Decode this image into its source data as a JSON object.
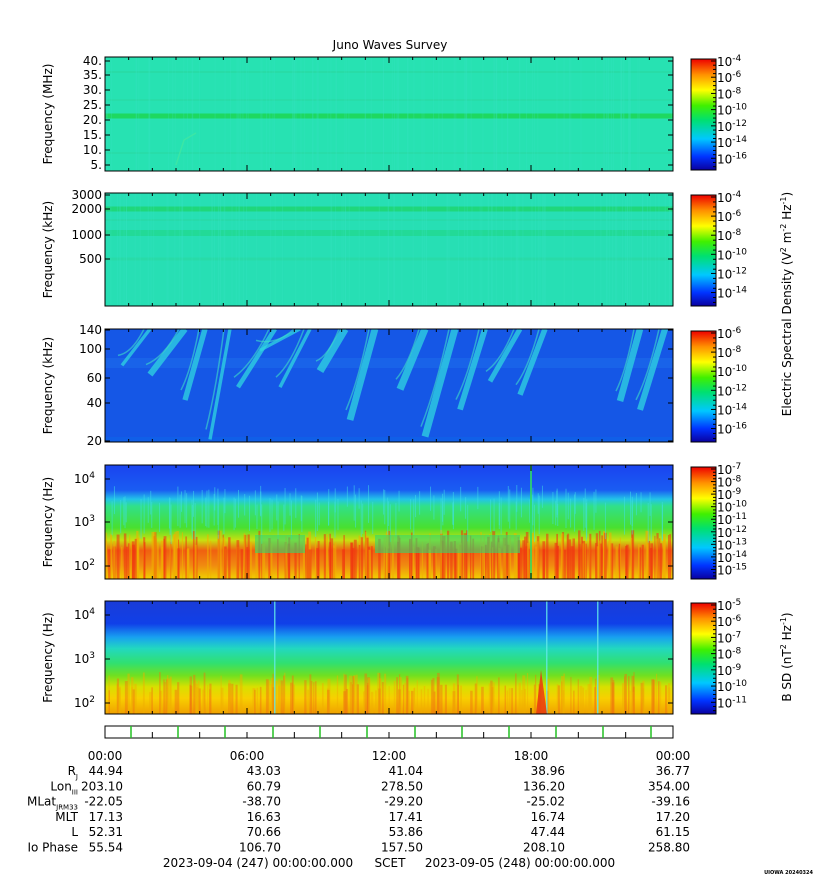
{
  "title": "Juno Waves Survey",
  "panels": [
    {
      "ylabel": "Frequency (MHz)",
      "yticks": [
        "40.",
        "35.",
        "30.",
        "25.",
        "20.",
        "15.",
        "10.",
        "5."
      ],
      "colorbar_exponents": [
        "-4",
        "-6",
        "-8",
        "-10",
        "-12",
        "-14",
        "-16"
      ],
      "base_color": "#27e2b2",
      "band_color": "#1ed860"
    },
    {
      "ylabel": "Frequency (kHz)",
      "yticks": [
        "3000",
        "2000",
        "1000",
        "500"
      ],
      "colorbar_exponents": [
        "-4",
        "-6",
        "-8",
        "-10",
        "-12",
        "-14"
      ],
      "base_color": "#27dfb4",
      "band_color": "#1fd674"
    },
    {
      "ylabel": "Frequency (kHz)",
      "yticks": [
        "140",
        "100",
        "60",
        "40",
        "20"
      ],
      "colorbar_exponents": [
        "-6",
        "-8",
        "-10",
        "-12",
        "-14",
        "-16"
      ],
      "base_color": "#1557e6",
      "band_color": "#2fd6e0"
    },
    {
      "ylabel": "Frequency (Hz)",
      "yticks_exponent": [
        "4",
        "3",
        "2"
      ],
      "colorbar_exponents": [
        "-7",
        "-8",
        "-9",
        "-10",
        "-11",
        "-12",
        "-13",
        "-14",
        "-15"
      ]
    },
    {
      "ylabel": "Frequency (Hz)",
      "yticks_exponent": [
        "4",
        "3",
        "2"
      ],
      "colorbar_exponents": [
        "-5",
        "-6",
        "-7",
        "-8",
        "-9",
        "-10",
        "-11"
      ]
    }
  ],
  "colorbar_labels": {
    "electric": "Electric Spectral Density (V",
    "electric_unit_sup1": "2",
    "electric_unit_mid": " m",
    "electric_unit_sup2": "-2",
    "electric_unit_mid2": " Hz",
    "electric_unit_sup3": "-1",
    "electric_unit_end": ")",
    "magnetic": "B SD (nT",
    "magnetic_sup1": "2",
    "magnetic_mid": " Hz",
    "magnetic_sup2": "-1",
    "magnetic_end": ")"
  },
  "time_axis": {
    "labels": [
      "00:00",
      "06:00",
      "12:00",
      "18:00",
      "00:00"
    ]
  },
  "ephemeris": [
    {
      "name": "R",
      "sub": "J",
      "values": [
        "44.94",
        "43.03",
        "41.04",
        "38.96",
        "36.77"
      ]
    },
    {
      "name": "Lon",
      "sub": "III",
      "values": [
        "203.10",
        "60.79",
        "278.50",
        "136.20",
        "354.00"
      ]
    },
    {
      "name": "MLat",
      "sub": "JRM33",
      "values": [
        "-22.05",
        "-38.70",
        "-29.20",
        "-25.02",
        "-39.16"
      ]
    },
    {
      "name": "MLT",
      "sub": "",
      "values": [
        "17.13",
        "16.63",
        "17.41",
        "16.74",
        "17.20"
      ]
    },
    {
      "name": "L",
      "sub": "",
      "values": [
        "52.31",
        "70.66",
        "53.86",
        "47.44",
        "61.15"
      ]
    },
    {
      "name": "Io Phase",
      "sub": "",
      "values": [
        "55.54",
        "106.70",
        "157.50",
        "208.10",
        "258.80"
      ]
    }
  ],
  "footer": {
    "start": "2023-09-04 (247) 00:00:00.000",
    "scet": "SCET",
    "end": "2023-09-05 (248) 00:00:00.000",
    "stamp": "UIOWA 20240324"
  },
  "chart_data": {
    "type": "heatmap",
    "title": "Juno Waves Survey",
    "x_range": [
      "2023-09-04 00:00",
      "2023-09-05 00:00"
    ],
    "x_ticks": [
      "00:00",
      "06:00",
      "12:00",
      "18:00",
      "00:00"
    ],
    "series": [
      {
        "ylabel": "Frequency (MHz)",
        "ylim": [
          3,
          41
        ],
        "colorbar_range_log10": [
          -17,
          -4
        ],
        "note_band_MHz": 21
      },
      {
        "ylabel": "Frequency (kHz)",
        "ylim": [
          140,
          3000
        ],
        "y_scale": "log",
        "colorbar_range_log10": [
          -15,
          -4
        ]
      },
      {
        "ylabel": "Frequency (kHz)",
        "ylim": [
          20,
          140
        ],
        "y_scale": "log",
        "colorbar_range_log10": [
          -16,
          -6
        ]
      },
      {
        "ylabel": "Frequency (Hz)",
        "ylim": [
          50,
          20000
        ],
        "y_scale": "log",
        "colorbar_range_log10": [
          -15,
          -7
        ]
      },
      {
        "ylabel": "Frequency (Hz)",
        "ylim": [
          50,
          20000
        ],
        "y_scale": "log",
        "colorbar_range_log10": [
          -11,
          -4.5
        ]
      }
    ],
    "colorbar_labels": [
      "Electric Spectral Density (V2 m-2 Hz-1)",
      "B SD (nT2 Hz-1)"
    ]
  }
}
